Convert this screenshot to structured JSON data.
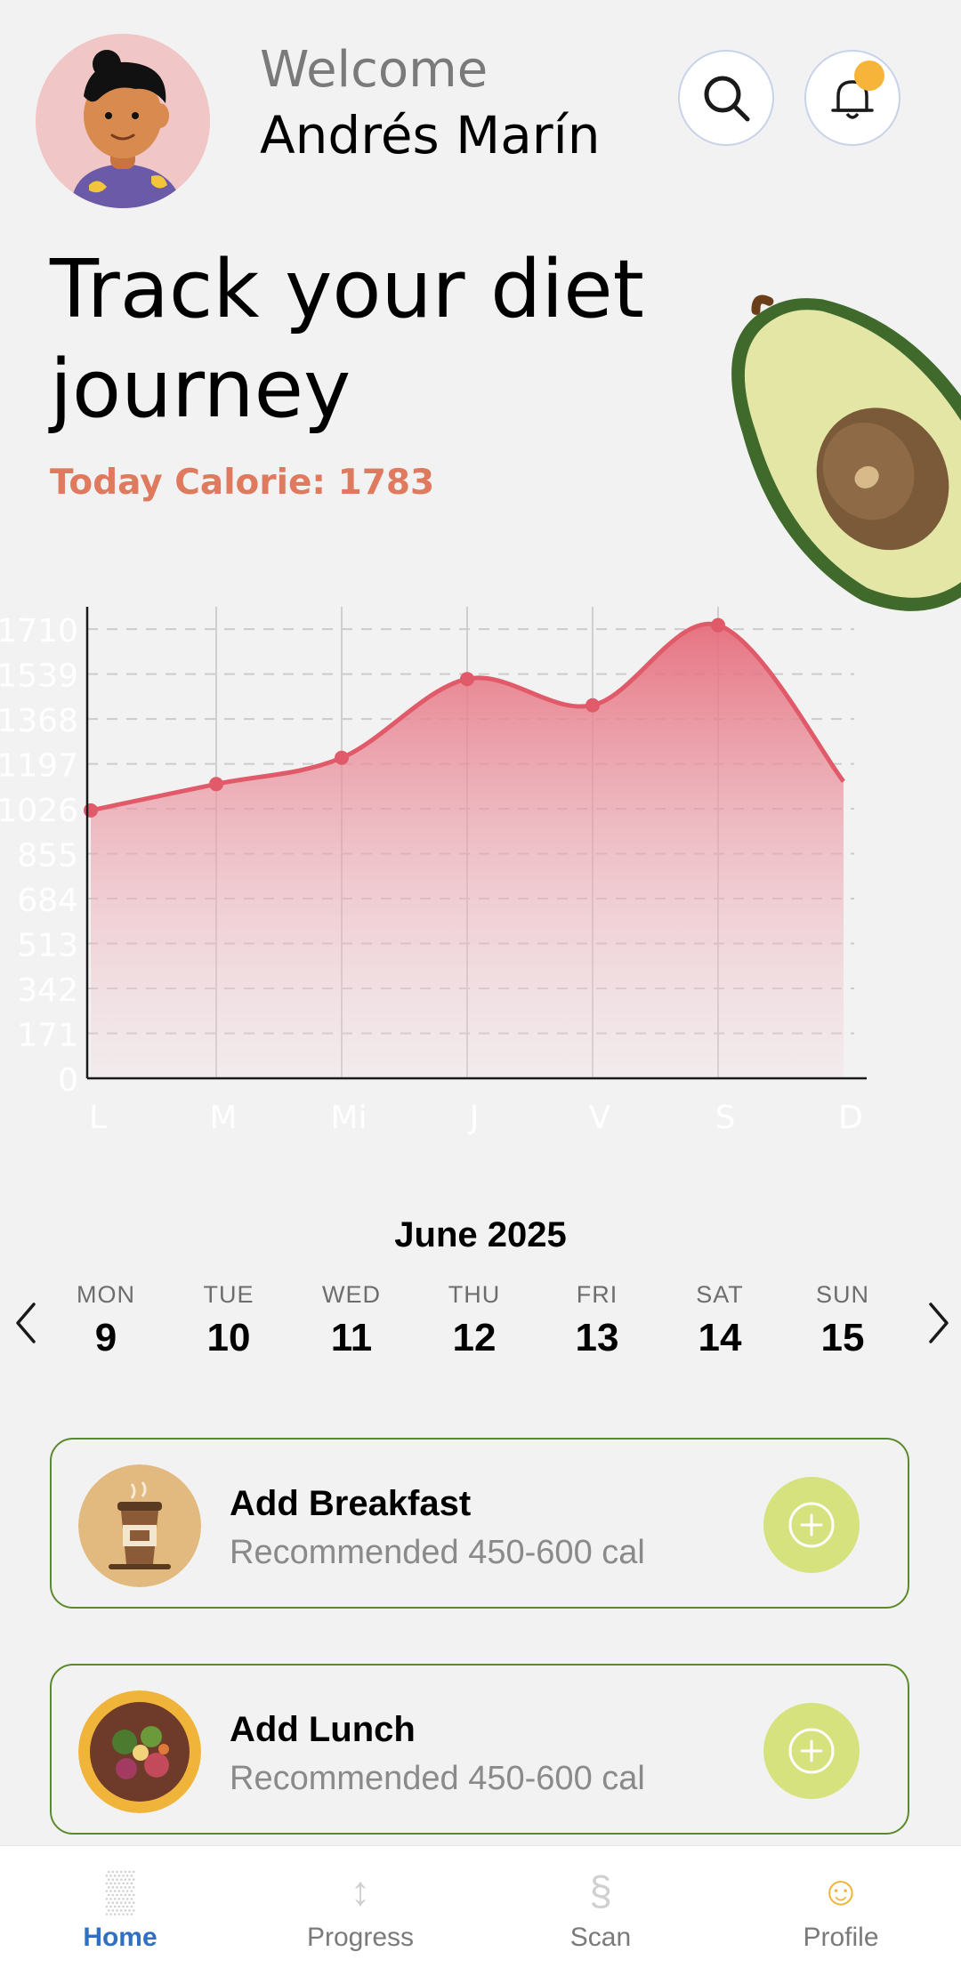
{
  "header": {
    "welcome": "Welcome",
    "user_name": "Andrés Marín",
    "avatar_icon": "avatar-cartoon-icon",
    "search_icon": "search-icon",
    "bell_icon": "bell-icon",
    "notification_dot_color": "#f7b43a"
  },
  "hero": {
    "title": "Track your diet journey",
    "calorie_label": "Today Calorie: 1783",
    "accent_color": "#e07a5f",
    "image_icon": "avocado-icon"
  },
  "chart_data": {
    "type": "area",
    "categories": [
      "L",
      "M",
      "Mi",
      "J",
      "V",
      "S",
      "D"
    ],
    "values": [
      1020,
      1120,
      1220,
      1520,
      1420,
      1725,
      1130
    ],
    "y_ticks": [
      "0",
      "171",
      "342",
      "513",
      "684",
      "855",
      "1026",
      "1197",
      "1368",
      "1539",
      "1710"
    ],
    "ylim": [
      0,
      1795
    ],
    "grid": true,
    "line_color": "#e05a6a"
  },
  "calendar": {
    "month": "June 2025",
    "prev_icon": "chevron-left-icon",
    "next_icon": "chevron-right-icon",
    "days": [
      {
        "name": "MON",
        "num": "9"
      },
      {
        "name": "TUE",
        "num": "10"
      },
      {
        "name": "WED",
        "num": "11"
      },
      {
        "name": "THU",
        "num": "12"
      },
      {
        "name": "FRI",
        "num": "13"
      },
      {
        "name": "SAT",
        "num": "14"
      },
      {
        "name": "SUN",
        "num": "15"
      }
    ]
  },
  "meals": [
    {
      "title": "Add Breakfast",
      "subtitle": "Recommended 450-600 cal",
      "icon": "coffee-cup-icon"
    },
    {
      "title": "Add Lunch",
      "subtitle": "Recommended 450-600 cal",
      "icon": "salad-bowl-icon"
    }
  ],
  "nav": {
    "items": [
      {
        "label": "Home",
        "icon": "▒",
        "icon_name": "home-icon"
      },
      {
        "label": "Progress",
        "icon": "↕",
        "icon_name": "progress-icon"
      },
      {
        "label": "Scan",
        "icon": "§",
        "icon_name": "scan-icon"
      },
      {
        "label": "Profile",
        "icon": "☺",
        "icon_name": "profile-icon"
      }
    ],
    "active_color": "#2f6fc4"
  }
}
